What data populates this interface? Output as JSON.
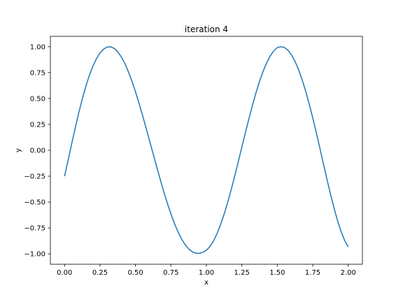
{
  "chart_data": {
    "type": "line",
    "title": "iteration 4",
    "xlabel": "x",
    "ylabel": "y",
    "xlim": [
      -0.1,
      2.1
    ],
    "ylim": [
      -1.1,
      1.1
    ],
    "xticks": [
      0.0,
      0.25,
      0.5,
      0.75,
      1.0,
      1.25,
      1.5,
      1.75,
      2.0
    ],
    "xtick_labels": [
      "0.00",
      "0.25",
      "0.50",
      "0.75",
      "1.00",
      "1.25",
      "1.50",
      "1.75",
      "2.00"
    ],
    "yticks": [
      -1.0,
      -0.75,
      -0.5,
      -0.25,
      0.0,
      0.25,
      0.5,
      0.75,
      1.0
    ],
    "ytick_labels": [
      "−1.00",
      "−0.75",
      "−0.50",
      "−0.25",
      "0.00",
      "0.25",
      "0.50",
      "0.75",
      "1.00"
    ],
    "grid": false,
    "color": "#1f77b4",
    "series": [
      {
        "x": [
          0.0,
          0.025,
          0.05,
          0.075,
          0.1,
          0.125,
          0.15,
          0.175,
          0.2,
          0.225,
          0.25,
          0.275,
          0.3,
          0.325,
          0.35,
          0.375,
          0.4,
          0.425,
          0.45,
          0.475,
          0.5,
          0.525,
          0.55,
          0.575,
          0.6,
          0.625,
          0.65,
          0.675,
          0.7,
          0.725,
          0.75,
          0.775,
          0.8,
          0.825,
          0.85,
          0.875,
          0.9,
          0.925,
          0.95,
          0.975,
          1.0,
          1.025,
          1.05,
          1.075,
          1.1,
          1.125,
          1.15,
          1.175,
          1.2,
          1.225,
          1.25,
          1.275,
          1.3,
          1.325,
          1.35,
          1.375,
          1.4,
          1.425,
          1.45,
          1.475,
          1.5,
          1.525,
          1.55,
          1.575,
          1.6,
          1.625,
          1.65,
          1.675,
          1.7,
          1.725,
          1.75,
          1.775,
          1.8,
          1.825,
          1.85,
          1.875,
          1.9,
          1.925,
          1.95,
          1.975,
          2.0
        ],
        "y": [
          -0.25,
          -0.096,
          0.061,
          0.215,
          0.361,
          0.496,
          0.618,
          0.724,
          0.813,
          0.885,
          0.94,
          0.977,
          0.997,
          0.999,
          0.984,
          0.951,
          0.902,
          0.838,
          0.759,
          0.667,
          0.565,
          0.454,
          0.336,
          0.214,
          0.089,
          -0.037,
          -0.162,
          -0.284,
          -0.402,
          -0.513,
          -0.615,
          -0.707,
          -0.788,
          -0.856,
          -0.911,
          -0.952,
          -0.979,
          -0.993,
          -0.995,
          -0.985,
          -0.966,
          -0.929,
          -0.875,
          -0.804,
          -0.717,
          -0.616,
          -0.503,
          -0.379,
          -0.247,
          -0.109,
          0.031,
          0.171,
          0.306,
          0.436,
          0.557,
          0.667,
          0.763,
          0.845,
          0.911,
          0.96,
          0.992,
          1.0,
          0.993,
          0.966,
          0.921,
          0.858,
          0.778,
          0.681,
          0.57,
          0.446,
          0.312,
          0.169,
          0.021,
          -0.13,
          -0.28,
          -0.424,
          -0.559,
          -0.681,
          -0.786,
          -0.871,
          -0.932
        ]
      }
    ]
  }
}
